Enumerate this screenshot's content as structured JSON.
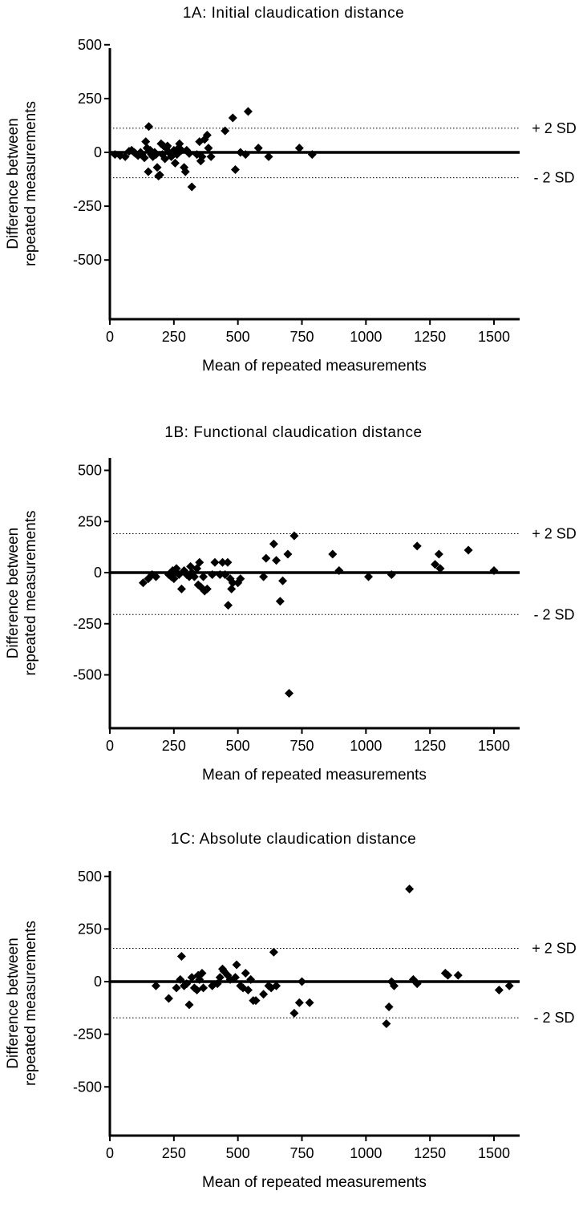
{
  "chart_data": [
    {
      "type": "scatter",
      "title": "1A: Initial claudication distance",
      "xlabel": "Mean of repeated measurements",
      "ylabel": [
        "Difference between",
        "repeated measurements"
      ],
      "xlim": [
        0,
        1600
      ],
      "ylim": [
        -650,
        650
      ],
      "xticks": [
        0,
        250,
        500,
        750,
        1000,
        1250,
        1500
      ],
      "yticks": [
        500,
        250,
        0,
        -250,
        -500
      ],
      "grid": false,
      "zero_line": 0,
      "limits": [
        {
          "label": "+ 2 SD",
          "value": 112
        },
        {
          "label": "- 2 SD",
          "value": -118
        }
      ],
      "points": [
        [
          20,
          -10
        ],
        [
          40,
          -15
        ],
        [
          60,
          -20
        ],
        [
          75,
          5
        ],
        [
          85,
          10
        ],
        [
          95,
          0
        ],
        [
          100,
          -5
        ],
        [
          110,
          -15
        ],
        [
          120,
          0
        ],
        [
          125,
          -10
        ],
        [
          135,
          -25
        ],
        [
          140,
          50
        ],
        [
          145,
          20
        ],
        [
          150,
          -90
        ],
        [
          152,
          120
        ],
        [
          158,
          10
        ],
        [
          162,
          -10
        ],
        [
          168,
          -20
        ],
        [
          175,
          0
        ],
        [
          180,
          -10
        ],
        [
          185,
          -70
        ],
        [
          190,
          -110
        ],
        [
          195,
          -105
        ],
        [
          200,
          40
        ],
        [
          205,
          -10
        ],
        [
          210,
          30
        ],
        [
          215,
          -30
        ],
        [
          220,
          20
        ],
        [
          225,
          30
        ],
        [
          230,
          0
        ],
        [
          240,
          -20
        ],
        [
          250,
          10
        ],
        [
          255,
          -50
        ],
        [
          262,
          -10
        ],
        [
          268,
          20
        ],
        [
          272,
          40
        ],
        [
          280,
          10
        ],
        [
          290,
          -70
        ],
        [
          295,
          -90
        ],
        [
          300,
          10
        ],
        [
          310,
          -5
        ],
        [
          320,
          -160
        ],
        [
          340,
          -10
        ],
        [
          350,
          50
        ],
        [
          355,
          -40
        ],
        [
          360,
          -20
        ],
        [
          370,
          60
        ],
        [
          380,
          80
        ],
        [
          385,
          20
        ],
        [
          395,
          -20
        ],
        [
          450,
          100
        ],
        [
          480,
          160
        ],
        [
          490,
          -80
        ],
        [
          510,
          0
        ],
        [
          530,
          -10
        ],
        [
          540,
          190
        ],
        [
          580,
          20
        ],
        [
          620,
          -20
        ],
        [
          740,
          20
        ],
        [
          790,
          -10
        ]
      ]
    },
    {
      "type": "scatter",
      "title": "1B: Functional claudication distance",
      "xlabel": "Mean of repeated measurements",
      "ylabel": [
        "Difference between",
        "repeated measurements"
      ],
      "xlim": [
        0,
        1600
      ],
      "ylim": [
        -650,
        650
      ],
      "xticks": [
        0,
        250,
        500,
        750,
        1000,
        1250,
        1500
      ],
      "yticks": [
        500,
        250,
        0,
        -250,
        -500
      ],
      "grid": false,
      "zero_line": 0,
      "limits": [
        {
          "label": "+ 2 SD",
          "value": 190
        },
        {
          "label": "- 2 SD",
          "value": -205
        }
      ],
      "points": [
        [
          130,
          -50
        ],
        [
          150,
          -30
        ],
        [
          165,
          -10
        ],
        [
          180,
          -20
        ],
        [
          230,
          -10
        ],
        [
          240,
          -20
        ],
        [
          245,
          10
        ],
        [
          250,
          -30
        ],
        [
          255,
          0
        ],
        [
          260,
          20
        ],
        [
          270,
          -10
        ],
        [
          280,
          -80
        ],
        [
          290,
          10
        ],
        [
          300,
          -10
        ],
        [
          310,
          -20
        ],
        [
          315,
          30
        ],
        [
          320,
          0
        ],
        [
          330,
          -20
        ],
        [
          340,
          20
        ],
        [
          345,
          -60
        ],
        [
          350,
          50
        ],
        [
          355,
          -70
        ],
        [
          365,
          -20
        ],
        [
          370,
          -90
        ],
        [
          380,
          -80
        ],
        [
          400,
          -10
        ],
        [
          410,
          50
        ],
        [
          430,
          -10
        ],
        [
          440,
          50
        ],
        [
          450,
          -10
        ],
        [
          460,
          50
        ],
        [
          462,
          -160
        ],
        [
          470,
          -30
        ],
        [
          475,
          -80
        ],
        [
          480,
          -50
        ],
        [
          500,
          -50
        ],
        [
          510,
          -30
        ],
        [
          600,
          -20
        ],
        [
          610,
          70
        ],
        [
          640,
          140
        ],
        [
          650,
          60
        ],
        [
          665,
          -140
        ],
        [
          675,
          -40
        ],
        [
          695,
          90
        ],
        [
          700,
          -590
        ],
        [
          720,
          180
        ],
        [
          870,
          90
        ],
        [
          895,
          10
        ],
        [
          1010,
          -20
        ],
        [
          1100,
          -10
        ],
        [
          1200,
          130
        ],
        [
          1270,
          40
        ],
        [
          1285,
          90
        ],
        [
          1290,
          20
        ],
        [
          1400,
          110
        ],
        [
          1500,
          10
        ]
      ]
    },
    {
      "type": "scatter",
      "title": "1C: Absolute claudication distance",
      "xlabel": "Mean of repeated measurements",
      "ylabel": [
        "Difference between",
        "repeated measurements"
      ],
      "xlim": [
        0,
        1600
      ],
      "ylim": [
        -650,
        650
      ],
      "xticks": [
        0,
        250,
        500,
        750,
        1000,
        1250,
        1500
      ],
      "yticks": [
        500,
        250,
        0,
        -250,
        -500
      ],
      "grid": false,
      "zero_line": 0,
      "limits": [
        {
          "label": "+ 2 SD",
          "value": 158
        },
        {
          "label": "- 2 SD",
          "value": -172
        }
      ],
      "points": [
        [
          180,
          -20
        ],
        [
          230,
          -80
        ],
        [
          260,
          -30
        ],
        [
          275,
          10
        ],
        [
          280,
          120
        ],
        [
          290,
          -20
        ],
        [
          300,
          -10
        ],
        [
          310,
          -110
        ],
        [
          320,
          20
        ],
        [
          330,
          -30
        ],
        [
          340,
          -40
        ],
        [
          345,
          30
        ],
        [
          350,
          10
        ],
        [
          360,
          40
        ],
        [
          365,
          -30
        ],
        [
          400,
          -20
        ],
        [
          420,
          -10
        ],
        [
          430,
          20
        ],
        [
          440,
          60
        ],
        [
          445,
          50
        ],
        [
          460,
          30
        ],
        [
          470,
          10
        ],
        [
          490,
          20
        ],
        [
          495,
          80
        ],
        [
          510,
          -20
        ],
        [
          520,
          -30
        ],
        [
          530,
          40
        ],
        [
          540,
          -40
        ],
        [
          550,
          10
        ],
        [
          560,
          -90
        ],
        [
          570,
          -90
        ],
        [
          600,
          -60
        ],
        [
          620,
          -20
        ],
        [
          630,
          -30
        ],
        [
          640,
          140
        ],
        [
          650,
          -20
        ],
        [
          720,
          -150
        ],
        [
          740,
          -100
        ],
        [
          750,
          0
        ],
        [
          780,
          -100
        ],
        [
          1080,
          -200
        ],
        [
          1090,
          -120
        ],
        [
          1100,
          0
        ],
        [
          1110,
          -20
        ],
        [
          1170,
          440
        ],
        [
          1185,
          10
        ],
        [
          1200,
          -10
        ],
        [
          1310,
          40
        ],
        [
          1320,
          30
        ],
        [
          1360,
          30
        ],
        [
          1520,
          -40
        ],
        [
          1560,
          -20
        ]
      ]
    }
  ]
}
